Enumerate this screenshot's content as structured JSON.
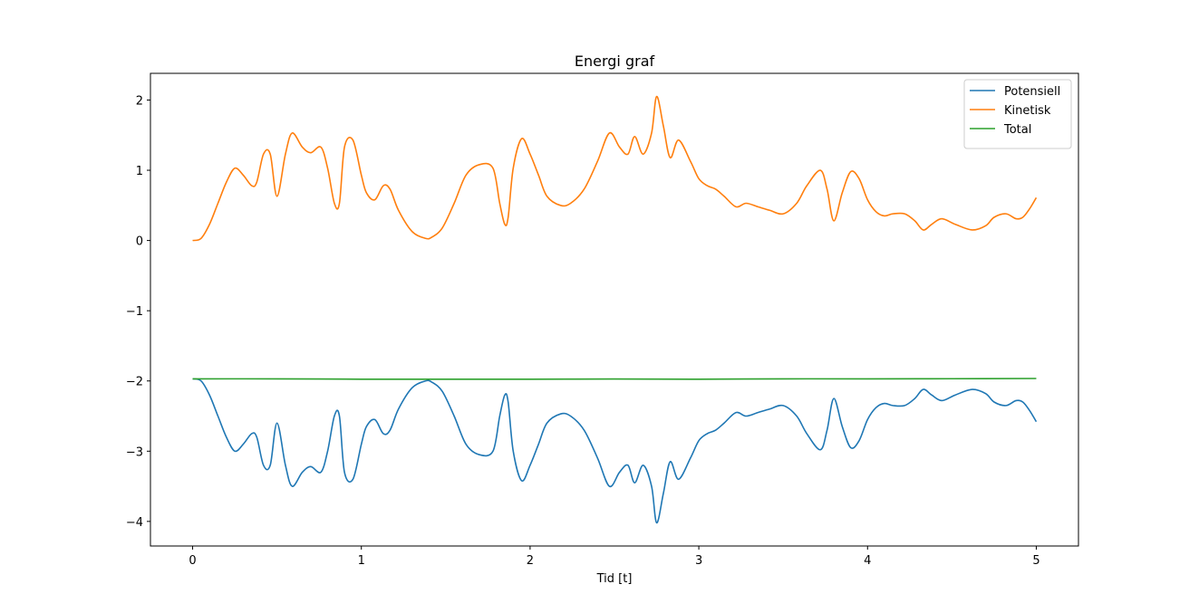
{
  "chart_data": {
    "type": "line",
    "title": "Energi graf",
    "xlabel": "Tid [t]",
    "ylabel": "",
    "xlim": [
      -0.25,
      5.25
    ],
    "ylim": [
      -4.35,
      2.38
    ],
    "xticks": [
      0,
      1,
      2,
      3,
      4,
      5
    ],
    "yticks": [
      2,
      1,
      0,
      -1,
      -2,
      -3,
      -4
    ],
    "ytick_labels": [
      "2",
      "1",
      "0",
      "−1",
      "−2",
      "−3",
      "−4"
    ],
    "grid": false,
    "legend_position": "top-right",
    "series": [
      {
        "name": "Potensiell",
        "color": "#1f77b4",
        "x": [
          0,
          0.05,
          0.1,
          0.15,
          0.2,
          0.25,
          0.3,
          0.35,
          0.38,
          0.42,
          0.46,
          0.5,
          0.55,
          0.59,
          0.65,
          0.7,
          0.76,
          0.8,
          0.84,
          0.87,
          0.9,
          0.95,
          1.0,
          1.03,
          1.08,
          1.13,
          1.17,
          1.22,
          1.3,
          1.38,
          1.42,
          1.48,
          1.55,
          1.62,
          1.7,
          1.78,
          1.82,
          1.85,
          1.87,
          1.9,
          1.95,
          2.0,
          2.05,
          2.1,
          2.18,
          2.24,
          2.32,
          2.4,
          2.47,
          2.53,
          2.58,
          2.62,
          2.67,
          2.72,
          2.75,
          2.79,
          2.83,
          2.88,
          2.95,
          3.0,
          3.05,
          3.1,
          3.15,
          3.22,
          3.28,
          3.35,
          3.42,
          3.5,
          3.58,
          3.64,
          3.72,
          3.76,
          3.8,
          3.85,
          3.9,
          3.95,
          4.0,
          4.05,
          4.1,
          4.15,
          4.22,
          4.28,
          4.33,
          4.38,
          4.44,
          4.52,
          4.62,
          4.7,
          4.75,
          4.82,
          4.88,
          4.92,
          4.96,
          5.0
        ],
        "values": [
          -1.97,
          -2.0,
          -2.2,
          -2.5,
          -2.8,
          -3.0,
          -2.9,
          -2.75,
          -2.8,
          -3.2,
          -3.2,
          -2.6,
          -3.2,
          -3.5,
          -3.3,
          -3.22,
          -3.3,
          -3.0,
          -2.5,
          -2.5,
          -3.3,
          -3.4,
          -2.9,
          -2.65,
          -2.55,
          -2.75,
          -2.7,
          -2.4,
          -2.1,
          -2.0,
          -2.02,
          -2.15,
          -2.5,
          -2.9,
          -3.05,
          -3.0,
          -2.5,
          -2.2,
          -2.3,
          -3.0,
          -3.42,
          -3.2,
          -2.9,
          -2.6,
          -2.47,
          -2.5,
          -2.7,
          -3.1,
          -3.5,
          -3.3,
          -3.2,
          -3.45,
          -3.2,
          -3.5,
          -4.02,
          -3.6,
          -3.15,
          -3.4,
          -3.1,
          -2.85,
          -2.75,
          -2.7,
          -2.6,
          -2.45,
          -2.5,
          -2.45,
          -2.4,
          -2.35,
          -2.5,
          -2.75,
          -2.98,
          -2.7,
          -2.25,
          -2.65,
          -2.95,
          -2.85,
          -2.55,
          -2.38,
          -2.32,
          -2.35,
          -2.35,
          -2.25,
          -2.12,
          -2.2,
          -2.28,
          -2.2,
          -2.12,
          -2.18,
          -2.3,
          -2.35,
          -2.28,
          -2.3,
          -2.42,
          -2.58
        ]
      },
      {
        "name": "Kinetisk",
        "color": "#ff7f0e",
        "x": [
          0,
          0.05,
          0.1,
          0.15,
          0.2,
          0.25,
          0.3,
          0.35,
          0.38,
          0.42,
          0.46,
          0.5,
          0.55,
          0.59,
          0.65,
          0.7,
          0.76,
          0.8,
          0.84,
          0.87,
          0.9,
          0.95,
          1.0,
          1.03,
          1.08,
          1.13,
          1.17,
          1.22,
          1.3,
          1.38,
          1.42,
          1.48,
          1.55,
          1.62,
          1.7,
          1.78,
          1.82,
          1.85,
          1.87,
          1.9,
          1.95,
          2.0,
          2.05,
          2.1,
          2.18,
          2.24,
          2.32,
          2.4,
          2.47,
          2.53,
          2.58,
          2.62,
          2.67,
          2.72,
          2.75,
          2.79,
          2.83,
          2.88,
          2.95,
          3.0,
          3.05,
          3.1,
          3.15,
          3.22,
          3.28,
          3.35,
          3.42,
          3.5,
          3.58,
          3.64,
          3.72,
          3.76,
          3.8,
          3.85,
          3.9,
          3.95,
          4.0,
          4.05,
          4.1,
          4.15,
          4.22,
          4.28,
          4.33,
          4.38,
          4.44,
          4.52,
          4.62,
          4.7,
          4.75,
          4.82,
          4.88,
          4.92,
          4.96,
          5.0
        ],
        "values": [
          0.0,
          0.03,
          0.23,
          0.53,
          0.83,
          1.03,
          0.93,
          0.78,
          0.83,
          1.23,
          1.23,
          0.63,
          1.23,
          1.53,
          1.33,
          1.25,
          1.33,
          1.03,
          0.53,
          0.53,
          1.33,
          1.43,
          0.93,
          0.68,
          0.58,
          0.78,
          0.73,
          0.43,
          0.13,
          0.03,
          0.05,
          0.18,
          0.53,
          0.93,
          1.08,
          1.03,
          0.53,
          0.23,
          0.33,
          1.03,
          1.45,
          1.23,
          0.93,
          0.63,
          0.5,
          0.53,
          0.73,
          1.13,
          1.53,
          1.33,
          1.23,
          1.48,
          1.23,
          1.53,
          2.05,
          1.63,
          1.18,
          1.43,
          1.13,
          0.88,
          0.78,
          0.73,
          0.63,
          0.48,
          0.53,
          0.48,
          0.43,
          0.38,
          0.53,
          0.78,
          1.0,
          0.73,
          0.28,
          0.68,
          0.98,
          0.88,
          0.58,
          0.41,
          0.35,
          0.38,
          0.38,
          0.28,
          0.15,
          0.23,
          0.31,
          0.23,
          0.15,
          0.21,
          0.33,
          0.38,
          0.31,
          0.33,
          0.45,
          0.61
        ]
      },
      {
        "name": "Total",
        "color": "#2ca02c",
        "x": [
          0,
          0.5,
          1.0,
          1.5,
          2.0,
          2.5,
          3.0,
          3.5,
          4.0,
          4.5,
          5.0
        ],
        "values": [
          -1.97,
          -1.97,
          -1.975,
          -1.975,
          -1.975,
          -1.972,
          -1.975,
          -1.97,
          -1.97,
          -1.968,
          -1.965
        ]
      }
    ]
  }
}
